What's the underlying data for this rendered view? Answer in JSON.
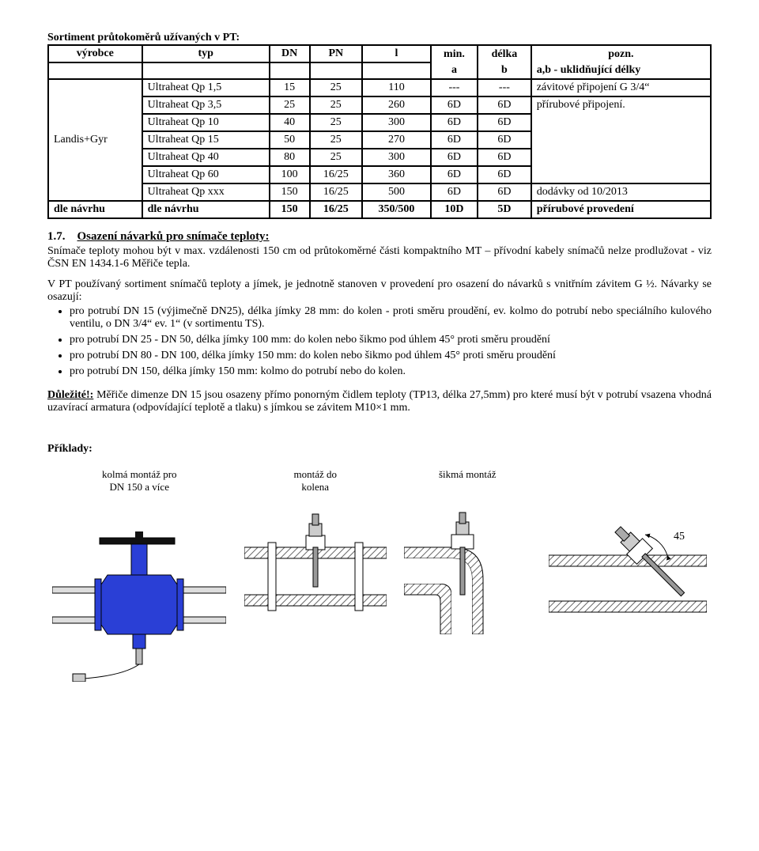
{
  "table": {
    "caption": "Sortiment průtokoměrů užívaných v PT:",
    "header": {
      "c1": "výrobce",
      "c2": "typ",
      "c3": "DN",
      "c4": "PN",
      "c5": "l",
      "c6": "min.",
      "c7": "délka",
      "c8": "pozn.",
      "sub_a": "a",
      "sub_b": "b",
      "sub_note": "a,b - uklidňující délky"
    },
    "vendor": "Landis+Gyr",
    "rows": [
      {
        "typ": "Ultraheat Qp 1,5",
        "dn": "15",
        "pn": "25",
        "l": "110",
        "a": "---",
        "b": "---",
        "note": "závitové připojení G 3/4“"
      },
      {
        "typ": "Ultraheat Qp 3,5",
        "dn": "25",
        "pn": "25",
        "l": "260",
        "a": "6D",
        "b": "6D",
        "note": "přírubové připojení."
      },
      {
        "typ": "Ultraheat Qp 10",
        "dn": "40",
        "pn": "25",
        "l": "300",
        "a": "6D",
        "b": "6D",
        "note": ""
      },
      {
        "typ": "Ultraheat Qp 15",
        "dn": "50",
        "pn": "25",
        "l": "270",
        "a": "6D",
        "b": "6D",
        "note": ""
      },
      {
        "typ": "Ultraheat Qp 40",
        "dn": "80",
        "pn": "25",
        "l": "300",
        "a": "6D",
        "b": "6D",
        "note": ""
      },
      {
        "typ": "Ultraheat Qp 60",
        "dn": "100",
        "pn": "16/25",
        "l": "360",
        "a": "6D",
        "b": "6D",
        "note": ""
      },
      {
        "typ": "Ultraheat Qp xxx",
        "dn": "150",
        "pn": "16/25",
        "l": "500",
        "a": "6D",
        "b": "6D",
        "note": "dodávky od 10/2013"
      }
    ],
    "footer": {
      "c1": "dle návrhu",
      "c2": "dle návrhu",
      "c3": "150",
      "c4": "16/25",
      "c5": "350/500",
      "c6": "10D",
      "c7": "5D",
      "c8": "přírubové provedení"
    }
  },
  "section17": {
    "num": "1.7.",
    "title": "Osazení návarků pro snímače teploty:",
    "p1": "Snímače teploty mohou být v max. vzdálenosti 150 cm od průtokoměrné části kompaktního MT – přívodní kabely snímačů nelze prodlužovat - viz ČSN EN 1434.1-6 Měřiče tepla.",
    "p2": "V PT používaný sortiment snímačů teploty a jímek, je jednotně stanoven v provedení pro osazení do návarků s vnitřním závitem G ½. Návarky se osazují:",
    "bullets": [
      "pro potrubí DN 15 (výjimečně DN25), délka jímky 28 mm: do kolen - proti směru proudění, ev. kolmo do potrubí nebo speciálního kulového ventilu, o DN 3/4“ ev. 1“ (v sortimentu TS).",
      "pro potrubí DN 25 - DN 50, délka jímky 100 mm: do kolen nebo šikmo pod úhlem 45° proti směru proudění",
      "pro potrubí DN 80 - DN 100, délka jímky 150 mm: do kolen nebo šikmo pod úhlem 45° proti směru proudění",
      "pro potrubí DN 150, délka jímky 150 mm: kolmo do potrubí nebo do kolen."
    ],
    "important_label": "Důležité!:",
    "important_text": " Měřiče dimenze DN 15 jsou osazeny přímo ponorným čidlem teploty (TP13, délka 27,5mm) pro které musí být v potrubí vsazena vhodná uzavírací armatura (odpovídající teplotě a tlaku) s jímkou se závitem M10×1 mm."
  },
  "examples": {
    "label": "Příklady:",
    "figs": [
      {
        "cap": "kolmá montáž pro\nDN 150 a více"
      },
      {
        "cap": "montáž do\nkolena"
      },
      {
        "cap": "šikmá montáž"
      }
    ],
    "angle": "45"
  },
  "colors": {
    "pipe_fill": "#ffffff",
    "pipe_stroke": "#000000",
    "valve_body": "#2a3fd6",
    "hatch": "#666666",
    "sensor": "#cccccc",
    "arrow": "#000000"
  }
}
